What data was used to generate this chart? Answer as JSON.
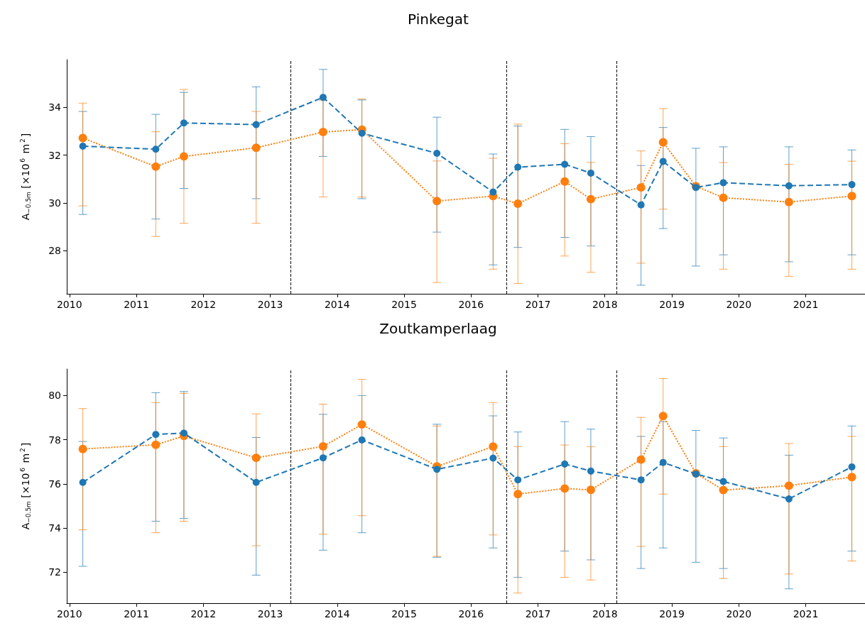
{
  "chart_data": [
    {
      "type": "line",
      "title": "Pinkegat",
      "ylabel": "A$_{−0.5m}$ [×10$^{6}$ m$^{2}$]",
      "x": [
        2010.2,
        2011.29,
        2011.71,
        2012.79,
        2013.79,
        2014.37,
        2015.49,
        2016.33,
        2016.7,
        2017.4,
        2017.79,
        2018.54,
        2018.87,
        2019.36,
        2019.77,
        2020.75,
        2021.69
      ],
      "xlim": [
        2009.96,
        2021.95
      ],
      "xticks": [
        2010,
        2011,
        2012,
        2013,
        2014,
        2015,
        2016,
        2017,
        2018,
        2019,
        2020,
        2021
      ],
      "ylim": [
        26.2,
        36.0
      ],
      "yticks": [
        28,
        30,
        32,
        34
      ],
      "marker": "circle",
      "series": [
        {
          "color": "#1f77b4",
          "line_style": "dashed",
          "values": [
            32.38,
            32.25,
            33.35,
            33.28,
            34.42,
            32.92,
            32.08,
            30.46,
            31.5,
            31.62,
            31.25,
            29.92,
            31.74,
            30.65,
            30.85,
            30.72,
            30.77
          ],
          "errors": [
            [
              29.52,
              33.83
            ],
            [
              29.33,
              33.71
            ],
            [
              30.61,
              34.63
            ],
            [
              30.18,
              34.86
            ],
            [
              31.95,
              35.59
            ],
            [
              30.18,
              34.31
            ],
            [
              28.78,
              33.59
            ],
            [
              27.41,
              32.05
            ],
            [
              28.14,
              33.22
            ],
            [
              28.56,
              33.08
            ],
            [
              28.2,
              32.78
            ],
            [
              26.56,
              31.57
            ],
            [
              28.93,
              33.16
            ],
            [
              27.36,
              32.29
            ],
            [
              27.83,
              32.35
            ],
            [
              27.54,
              32.35
            ],
            [
              27.83,
              32.22
            ]
          ]
        },
        {
          "color": "#ff7f0e",
          "line_style": "dotted",
          "values": [
            32.72,
            31.52,
            31.95,
            32.31,
            32.97,
            33.07,
            30.08,
            30.29,
            29.97,
            30.9,
            30.16,
            30.65,
            32.54,
            30.7,
            30.22,
            30.04,
            30.29
          ],
          "errors": [
            [
              29.88,
              34.18
            ],
            [
              28.6,
              32.98
            ],
            [
              29.15,
              34.75
            ],
            [
              29.15,
              33.83
            ],
            [
              30.25,
              34.3
            ],
            [
              30.25,
              34.35
            ],
            [
              26.67,
              31.76
            ],
            [
              27.23,
              31.87
            ],
            [
              26.63,
              33.3
            ],
            [
              27.78,
              32.48
            ],
            [
              27.1,
              31.7
            ],
            [
              27.48,
              32.18
            ],
            [
              29.74,
              33.95
            ],
            null,
            [
              27.23,
              31.69
            ],
            [
              26.93,
              31.62
            ],
            [
              27.23,
              31.75
            ]
          ]
        }
      ],
      "ref_lines": [
        {
          "axis": "x",
          "value": 2013.3,
          "color": "#000000",
          "line_style": "dashed"
        },
        {
          "axis": "x",
          "value": 2016.53,
          "color": "#000000",
          "line_style": "dashed"
        },
        {
          "axis": "x",
          "value": 2018.17,
          "color": "#000000",
          "line_style": "dashed"
        }
      ]
    },
    {
      "type": "line",
      "title": "Zoutkamperlaag",
      "ylabel": "A$_{−0.5m}$ [×10$^{6}$ m$^{2}$]",
      "x": [
        2010.2,
        2011.29,
        2011.71,
        2012.79,
        2013.79,
        2014.37,
        2015.49,
        2016.33,
        2016.7,
        2017.4,
        2017.79,
        2018.54,
        2018.87,
        2019.36,
        2019.77,
        2020.75,
        2021.69
      ],
      "xlim": [
        2009.96,
        2021.95
      ],
      "xticks": [
        2010,
        2011,
        2012,
        2013,
        2014,
        2015,
        2016,
        2017,
        2018,
        2019,
        2020,
        2021
      ],
      "ylim": [
        70.6,
        81.2
      ],
      "yticks": [
        72,
        74,
        76,
        78,
        80
      ],
      "marker": "circle",
      "series": [
        {
          "color": "#1f77b4",
          "line_style": "dashed",
          "values": [
            76.07,
            78.24,
            78.3,
            76.07,
            77.18,
            77.99,
            76.66,
            77.17,
            76.18,
            76.9,
            76.58,
            76.18,
            76.97,
            76.45,
            76.11,
            75.32,
            76.77
          ],
          "errors": [
            [
              72.27,
              77.92
            ],
            [
              74.31,
              80.13
            ],
            [
              74.44,
              80.18
            ],
            [
              71.87,
              78.1
            ],
            [
              73.0,
              79.15
            ],
            [
              73.79,
              80.0
            ],
            [
              72.68,
              78.7
            ],
            [
              73.1,
              79.08
            ],
            [
              71.77,
              78.35
            ],
            [
              72.96,
              78.82
            ],
            [
              72.56,
              78.48
            ],
            [
              72.17,
              78.15
            ],
            [
              73.1,
              78.82
            ],
            [
              72.45,
              78.42
            ],
            [
              72.17,
              78.08
            ],
            [
              71.25,
              77.3
            ],
            [
              72.96,
              78.62
            ]
          ]
        },
        {
          "color": "#ff7f0e",
          "line_style": "dotted",
          "values": [
            77.58,
            77.77,
            78.17,
            77.18,
            77.7,
            78.69,
            76.79,
            77.69,
            75.54,
            75.79,
            75.73,
            77.1,
            79.07,
            76.48,
            75.72,
            75.92,
            76.31
          ],
          "errors": [
            [
              73.92,
              79.41
            ],
            [
              73.79,
              79.68
            ],
            [
              74.31,
              80.1
            ],
            [
              73.2,
              79.17
            ],
            [
              73.72,
              79.61
            ],
            [
              74.56,
              80.73
            ],
            [
              72.72,
              78.62
            ],
            [
              73.69,
              79.68
            ],
            [
              71.06,
              77.69
            ],
            [
              71.77,
              77.76
            ],
            [
              71.65,
              77.69
            ],
            [
              73.17,
              79.01
            ],
            [
              75.54,
              80.77
            ],
            null,
            [
              71.72,
              77.69
            ],
            [
              71.92,
              77.83
            ],
            [
              72.51,
              78.15
            ]
          ]
        }
      ],
      "ref_lines": [
        {
          "axis": "x",
          "value": 2013.3,
          "color": "#000000",
          "line_style": "dashed"
        },
        {
          "axis": "x",
          "value": 2016.53,
          "color": "#000000",
          "line_style": "dashed"
        },
        {
          "axis": "x",
          "value": 2018.17,
          "color": "#000000",
          "line_style": "dashed"
        }
      ]
    }
  ]
}
